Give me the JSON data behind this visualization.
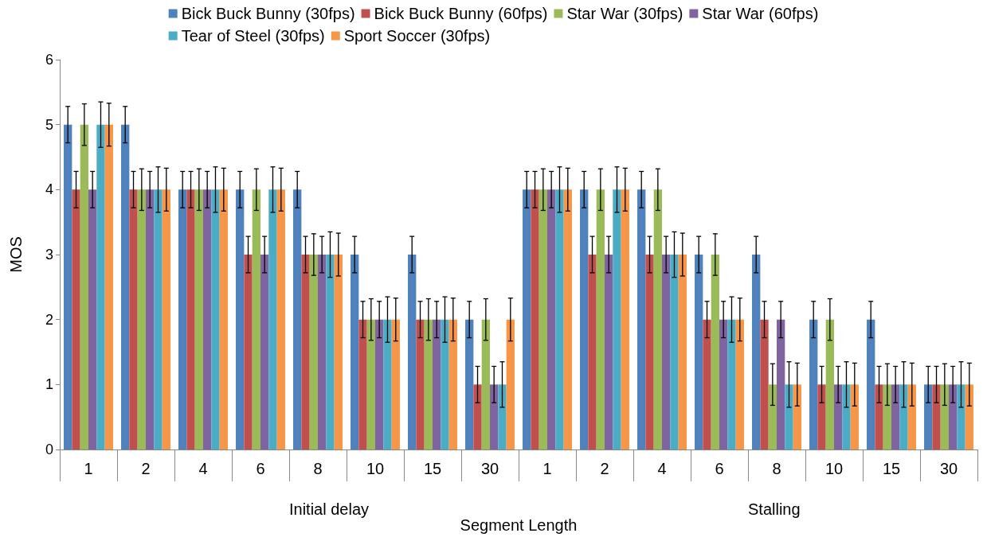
{
  "chart_data": {
    "type": "bar",
    "xlabel": "Segment Length",
    "ylabel": "MOS",
    "categories": [
      "1",
      "2",
      "4",
      "6",
      "8",
      "10",
      "15",
      "30",
      "1",
      "2",
      "4",
      "6",
      "8",
      "10",
      "15",
      "30"
    ],
    "series": [
      {
        "name": "Bick Buck Bunny (30fps)",
        "color": "#4f81bd",
        "values": [
          5,
          5,
          4,
          4,
          4,
          3,
          3,
          2,
          4,
          4,
          4,
          3,
          3,
          2,
          2,
          1
        ],
        "errors": [
          0.28,
          0.28,
          0.28,
          0.28,
          0.28,
          0.28,
          0.28,
          0.28,
          0.28,
          0.28,
          0.28,
          0.28,
          0.28,
          0.28,
          0.28,
          0.28
        ]
      },
      {
        "name": "Bick Buck Bunny (60fps)",
        "color": "#c0504d",
        "values": [
          4,
          4,
          4,
          3,
          3,
          2,
          2,
          1,
          4,
          3,
          3,
          2,
          2,
          1,
          1,
          1
        ],
        "errors": [
          0.28,
          0.28,
          0.28,
          0.28,
          0.28,
          0.28,
          0.28,
          0.28,
          0.28,
          0.28,
          0.28,
          0.28,
          0.28,
          0.28,
          0.28,
          0.28
        ]
      },
      {
        "name": "Star War (30fps)",
        "color": "#9bbb59",
        "values": [
          5,
          4,
          4,
          4,
          3,
          2,
          2,
          2,
          4,
          4,
          4,
          3,
          1,
          2,
          1,
          1
        ],
        "errors": [
          0.32,
          0.32,
          0.32,
          0.32,
          0.32,
          0.32,
          0.32,
          0.32,
          0.32,
          0.32,
          0.32,
          0.32,
          0.32,
          0.32,
          0.32,
          0.32
        ]
      },
      {
        "name": "Star War (60fps)",
        "color": "#8064a2",
        "values": [
          4,
          4,
          4,
          3,
          3,
          2,
          2,
          1,
          4,
          3,
          3,
          2,
          2,
          1,
          1,
          1
        ],
        "errors": [
          0.28,
          0.28,
          0.28,
          0.28,
          0.28,
          0.28,
          0.28,
          0.28,
          0.28,
          0.28,
          0.28,
          0.28,
          0.28,
          0.28,
          0.28,
          0.28
        ]
      },
      {
        "name": "Tear of Steel (30fps)",
        "color": "#4bacc6",
        "values": [
          5,
          4,
          4,
          4,
          3,
          2,
          2,
          1,
          4,
          4,
          3,
          2,
          1,
          1,
          1,
          1
        ],
        "errors": [
          0.35,
          0.35,
          0.35,
          0.35,
          0.35,
          0.35,
          0.35,
          0.35,
          0.35,
          0.35,
          0.35,
          0.35,
          0.35,
          0.35,
          0.35,
          0.35
        ]
      },
      {
        "name": "Sport Soccer (30fps)",
        "color": "#f79646",
        "values": [
          5,
          4,
          4,
          4,
          3,
          2,
          2,
          2,
          4,
          4,
          3,
          2,
          1,
          1,
          1,
          1
        ],
        "errors": [
          0.33,
          0.33,
          0.33,
          0.33,
          0.33,
          0.33,
          0.33,
          0.33,
          0.33,
          0.33,
          0.33,
          0.33,
          0.33,
          0.33,
          0.33,
          0.33
        ]
      }
    ],
    "annotations": [
      "Initial delay",
      "Stalling"
    ],
    "ylim": [
      0,
      6
    ],
    "yticks": [
      0,
      1,
      2,
      3,
      4,
      5,
      6
    ],
    "grid": false,
    "legend": "top"
  }
}
